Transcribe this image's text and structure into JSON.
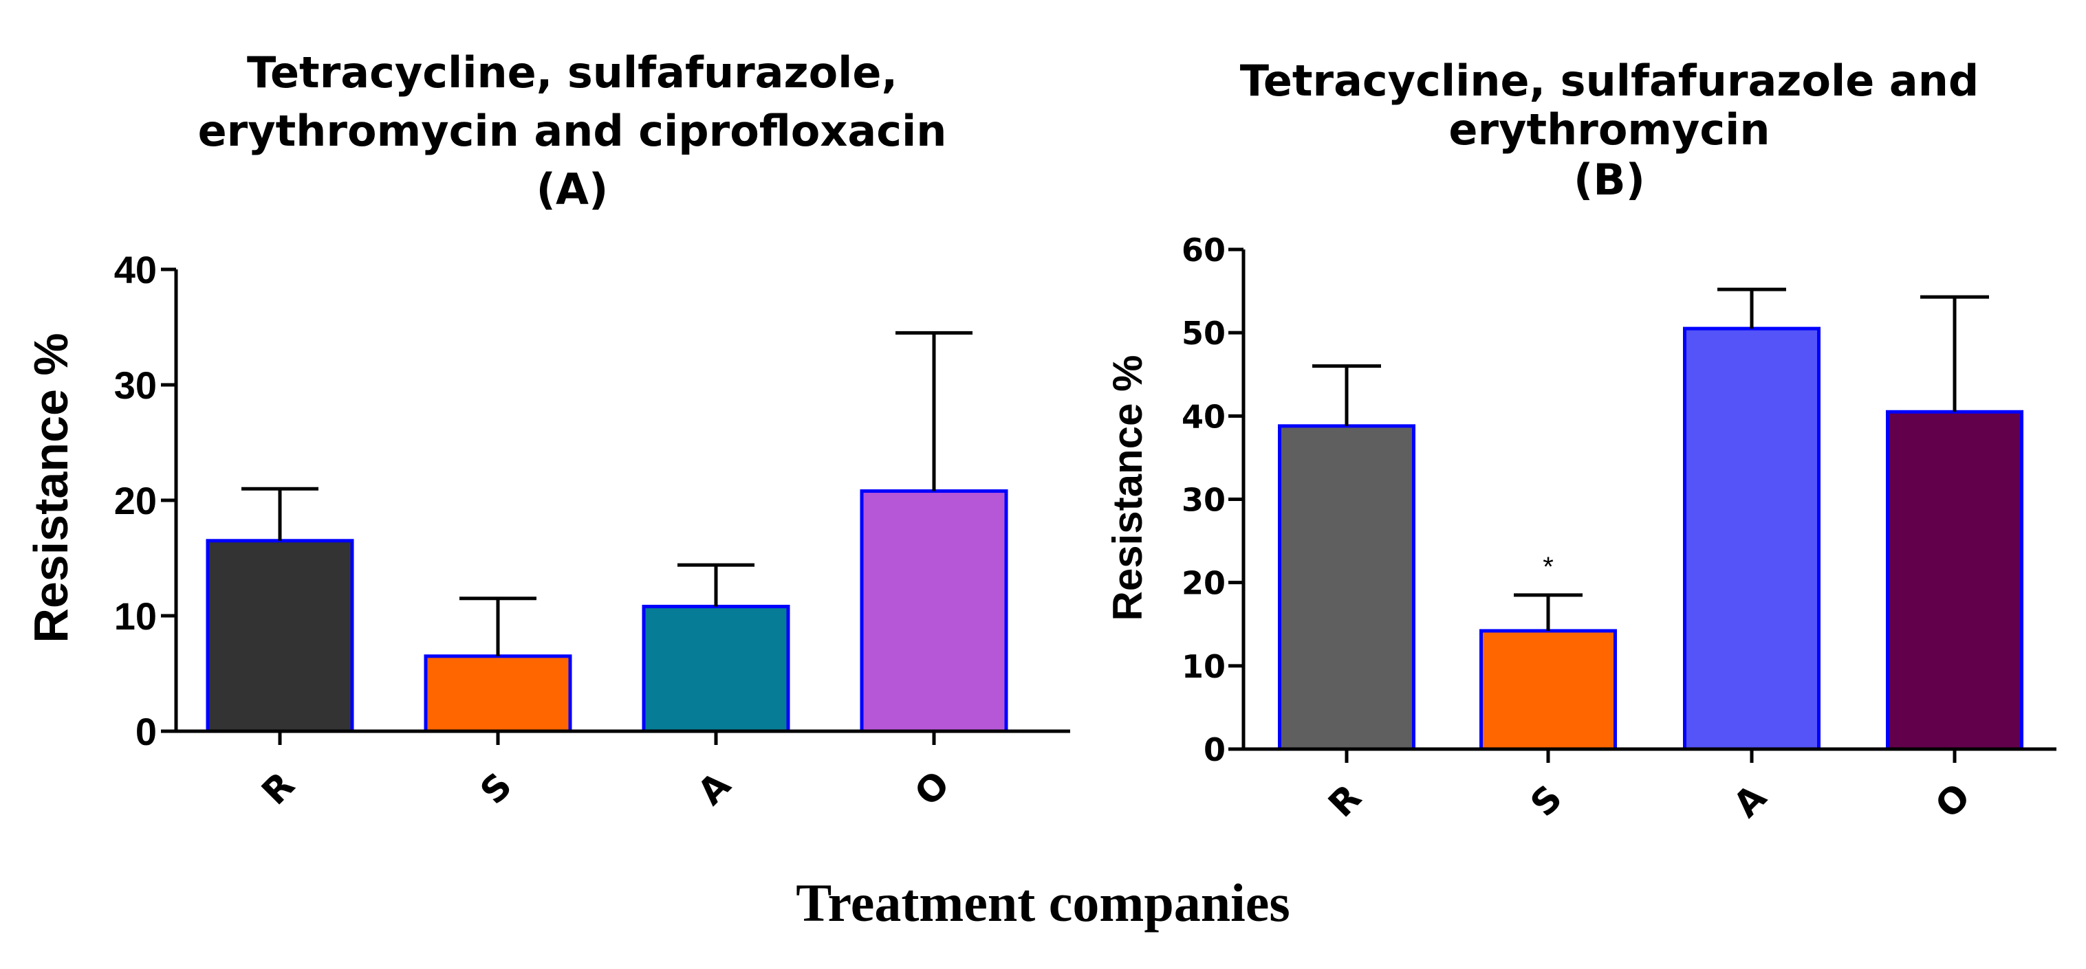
{
  "chart_data": [
    {
      "type": "bar",
      "title": [
        "Tetracycline, sulfafurazole,",
        "erythromycin and ciprofloxacin",
        "(A)"
      ],
      "ylabel": "Resistance %",
      "categories": [
        "R",
        "S",
        "A",
        "O"
      ],
      "values": [
        16.5,
        6.5,
        10.8,
        20.8
      ],
      "errors": [
        4.5,
        5.0,
        3.6,
        13.7
      ],
      "colors": [
        "#333333",
        "#ff6600",
        "#077c96",
        "#b657d8"
      ],
      "edge_color": "#0000ff",
      "ylim": [
        0,
        40
      ],
      "yticks": [
        0,
        10,
        20,
        30,
        40
      ],
      "annotations": [
        "",
        "",
        "",
        ""
      ]
    },
    {
      "type": "bar",
      "title": [
        "Tetracycline, sulfafurazole and",
        "erythromycin",
        "(B)"
      ],
      "ylabel": "Resistance %",
      "categories": [
        "R",
        "S",
        "A",
        "O"
      ],
      "values": [
        38.8,
        14.2,
        50.5,
        40.5
      ],
      "errors": [
        7.2,
        4.3,
        4.7,
        13.8
      ],
      "colors": [
        "#5f5f5f",
        "#ff6600",
        "#5454f8",
        "#62004c"
      ],
      "edge_color": "#0000ff",
      "ylim": [
        0,
        60
      ],
      "yticks": [
        0,
        10,
        20,
        30,
        40,
        50,
        60
      ],
      "annotations": [
        "",
        "*",
        "",
        ""
      ]
    }
  ],
  "shared_xlabel": "Treatment companies"
}
